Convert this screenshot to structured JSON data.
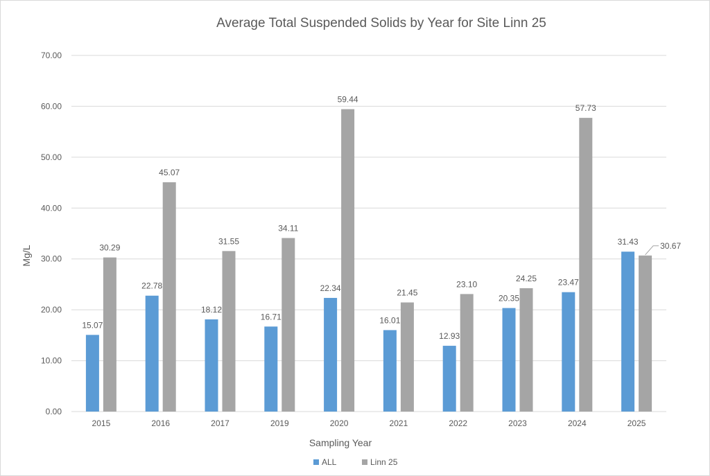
{
  "chart_data": {
    "type": "bar",
    "title": "Average Total Suspended Solids by Year for Site Linn 25",
    "xlabel": "Sampling Year",
    "ylabel": "Mg/L",
    "ylim": [
      0,
      70
    ],
    "yticks": [
      "0.00",
      "10.00",
      "20.00",
      "30.00",
      "40.00",
      "50.00",
      "60.00",
      "70.00"
    ],
    "grid": true,
    "legend_position": "bottom",
    "categories": [
      "2015",
      "2016",
      "2017",
      "2019",
      "2020",
      "2021",
      "2022",
      "2023",
      "2024",
      "2025"
    ],
    "series": [
      {
        "name": "ALL",
        "color": "#5b9bd5",
        "values": [
          15.07,
          22.78,
          18.12,
          16.71,
          22.34,
          16.01,
          12.93,
          20.35,
          23.47,
          31.43
        ],
        "labels": [
          "15.07",
          "22.78",
          "18.12",
          "16.71",
          "22.34",
          "16.01",
          "12.93",
          "20.35",
          "23.47",
          "31.43"
        ]
      },
      {
        "name": "Linn 25",
        "color": "#a5a5a5",
        "values": [
          30.29,
          45.07,
          31.55,
          34.11,
          59.44,
          21.45,
          23.1,
          24.25,
          57.73,
          30.67
        ],
        "labels": [
          "30.29",
          "45.07",
          "31.55",
          "34.11",
          "59.44",
          "21.45",
          "23.10",
          "24.25",
          "57.73",
          "30.67"
        ]
      }
    ]
  }
}
